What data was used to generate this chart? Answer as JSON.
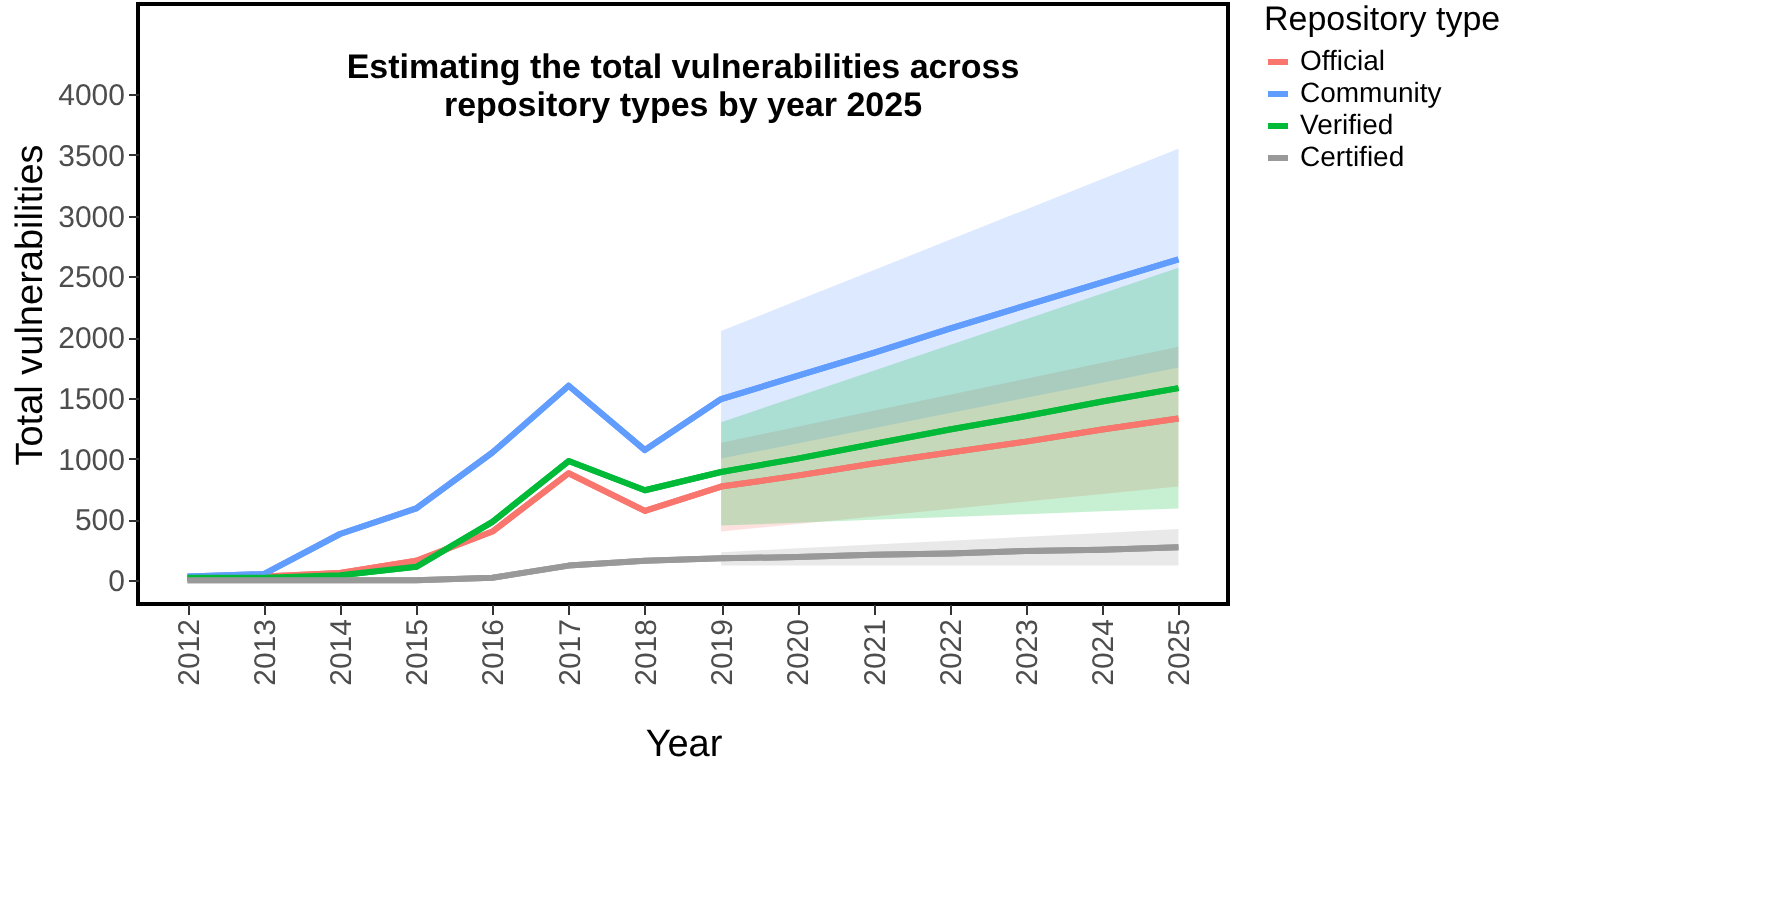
{
  "chart_data": {
    "type": "line",
    "title": "Estimating the total vulnerabilities across\nrepository types by year 2025",
    "xlabel": "Year",
    "ylabel": "Total vulnerabilities",
    "legend_title": "Repository type",
    "x": [
      2012,
      2013,
      2014,
      2015,
      2016,
      2017,
      2018,
      2019,
      2020,
      2021,
      2022,
      2023,
      2024,
      2025
    ],
    "series": [
      {
        "name": "Official",
        "color": "#f8766d",
        "values": [
          20,
          30,
          60,
          160,
          400,
          880,
          570,
          770,
          860,
          960,
          1050,
          1140,
          1240,
          1330
        ],
        "lower": [
          null,
          null,
          null,
          null,
          null,
          null,
          null,
          400,
          462,
          523,
          585,
          647,
          708,
          770
        ],
        "upper": [
          null,
          null,
          null,
          null,
          null,
          null,
          null,
          1130,
          1262,
          1393,
          1525,
          1657,
          1788,
          1920
        ]
      },
      {
        "name": "Community",
        "color": "#619cff",
        "values": [
          30,
          50,
          380,
          590,
          1050,
          1600,
          1070,
          1490,
          1680,
          1870,
          2070,
          2260,
          2450,
          2640
        ],
        "lower": [
          null,
          null,
          null,
          null,
          null,
          null,
          null,
          1000,
          1125,
          1250,
          1375,
          1500,
          1625,
          1750
        ],
        "upper": [
          null,
          null,
          null,
          null,
          null,
          null,
          null,
          2050,
          2300,
          2550,
          2800,
          3050,
          3300,
          3550
        ]
      },
      {
        "name": "Verified",
        "color": "#00ba38",
        "values": [
          20,
          20,
          40,
          110,
          480,
          980,
          740,
          890,
          1000,
          1120,
          1240,
          1350,
          1470,
          1580
        ],
        "lower": [
          null,
          null,
          null,
          null,
          null,
          null,
          null,
          450,
          473,
          497,
          520,
          543,
          567,
          590
        ],
        "upper": [
          null,
          null,
          null,
          null,
          null,
          null,
          null,
          1300,
          1512,
          1723,
          1935,
          2147,
          2358,
          2570
        ]
      },
      {
        "name": "Certified",
        "color": "#999999",
        "values": [
          0,
          0,
          0,
          0,
          20,
          120,
          160,
          180,
          190,
          210,
          220,
          240,
          250,
          270
        ],
        "lower": [
          null,
          null,
          null,
          null,
          null,
          null,
          null,
          120,
          120,
          120,
          120,
          120,
          120,
          120
        ],
        "upper": [
          null,
          null,
          null,
          null,
          null,
          null,
          null,
          230,
          262,
          293,
          325,
          357,
          388,
          420
        ]
      }
    ],
    "xlim": [
      2011.35,
      2025.65
    ],
    "xticks": [
      2012,
      2013,
      2014,
      2015,
      2016,
      2017,
      2018,
      2019,
      2020,
      2021,
      2022,
      2023,
      2024,
      2025
    ],
    "ylim": [
      -196,
      4740
    ],
    "yticks": [
      0,
      500,
      1000,
      1500,
      2000,
      2500,
      3000,
      3500,
      4000
    ],
    "grid": false,
    "legend": "right",
    "line_style": "solid",
    "marker": "none"
  }
}
